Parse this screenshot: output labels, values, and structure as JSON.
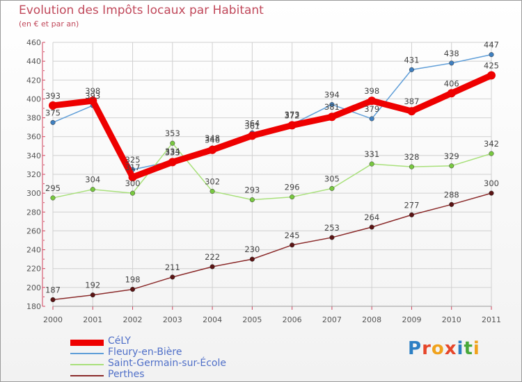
{
  "title": "Evolution des Impôts locaux par Habitant",
  "subtitle": "(en € et par an)",
  "logo": {
    "text": "Proxiti",
    "colors": [
      "#2c7fc4",
      "#e6462a",
      "#f0a21c",
      "#e6462a",
      "#2c7fc4",
      "#48a83a",
      "#f0a21c"
    ]
  },
  "chart_data": {
    "type": "line",
    "title": "Evolution des Impôts locaux par Habitant",
    "subtitle": "(en € et par an)",
    "x": [
      "2000",
      "2001",
      "2002",
      "2003",
      "2004",
      "2005",
      "2006",
      "2007",
      "2008",
      "2009",
      "2010",
      "2011"
    ],
    "ylim": [
      180,
      460
    ],
    "yticks": [
      180,
      200,
      220,
      240,
      260,
      280,
      300,
      320,
      340,
      360,
      380,
      400,
      420,
      440,
      460
    ],
    "grid": true,
    "legend_position": "bottom-left",
    "series": [
      {
        "name": "Fleury-en-Bière",
        "color": "#5f9ed8",
        "point_color": "#3f7fbf",
        "values": [
          375,
          393,
          325,
          334,
          348,
          364,
          373,
          394,
          379,
          431,
          438,
          447
        ]
      },
      {
        "name": "Saint-Germain-sur-École",
        "color": "#a8e07a",
        "point_color": "#78c840",
        "values": [
          295,
          304,
          300,
          353,
          302,
          293,
          296,
          305,
          331,
          328,
          329,
          342
        ]
      },
      {
        "name": "Perthes",
        "color": "#8a2a2a",
        "point_color": "#5a1414",
        "values": [
          187,
          192,
          198,
          211,
          222,
          230,
          245,
          253,
          264,
          277,
          288,
          300
        ]
      },
      {
        "name": "CéLY",
        "color": "#ee0000",
        "point_color": "#ee0000",
        "values": [
          393,
          398,
          317,
          333,
          346,
          361,
          372,
          381,
          398,
          387,
          406,
          425
        ]
      }
    ],
    "legend": [
      "CéLY",
      "Fleury-en-Bière",
      "Saint-Germain-sur-École",
      "Perthes"
    ]
  }
}
